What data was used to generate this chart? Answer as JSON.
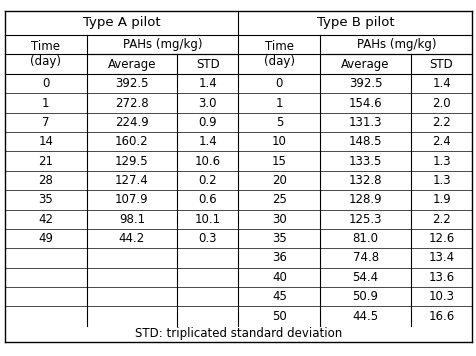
{
  "type_a": {
    "header1": "Type A pilot",
    "col1": "Time\n(day)",
    "col2": "PAHs (mg/kg)",
    "col2a": "Average",
    "col2b": "STD",
    "rows": [
      [
        "0",
        "392.5",
        "1.4"
      ],
      [
        "1",
        "272.8",
        "3.0"
      ],
      [
        "7",
        "224.9",
        "0.9"
      ],
      [
        "14",
        "160.2",
        "1.4"
      ],
      [
        "21",
        "129.5",
        "10.6"
      ],
      [
        "28",
        "127.4",
        "0.2"
      ],
      [
        "35",
        "107.9",
        "0.6"
      ],
      [
        "42",
        "98.1",
        "10.1"
      ],
      [
        "49",
        "44.2",
        "0.3"
      ],
      [
        "",
        "",
        ""
      ],
      [
        "",
        "",
        ""
      ],
      [
        "",
        "",
        ""
      ],
      [
        "",
        "",
        ""
      ]
    ]
  },
  "type_b": {
    "header1": "Type B pilot",
    "col1": "Time\n(day)",
    "col2": "PAHs (mg/kg)",
    "col2a": "Average",
    "col2b": "STD",
    "rows": [
      [
        "0",
        "392.5",
        "1.4"
      ],
      [
        "1",
        "154.6",
        "2.0"
      ],
      [
        "5",
        "131.3",
        "2.2"
      ],
      [
        "10",
        "148.5",
        "2.4"
      ],
      [
        "15",
        "133.5",
        "1.3"
      ],
      [
        "20",
        "132.8",
        "1.3"
      ],
      [
        "25",
        "128.9",
        "1.9"
      ],
      [
        "30",
        "125.3",
        "2.2"
      ],
      [
        "35",
        "81.0",
        "12.6"
      ],
      [
        "36",
        "74.8",
        "13.4"
      ],
      [
        "40",
        "54.4",
        "13.6"
      ],
      [
        "45",
        "50.9",
        "10.3"
      ],
      [
        "50",
        "44.5",
        "16.6"
      ]
    ]
  },
  "footer": "STD: triplicated standard deviation",
  "bg_color": "#ffffff",
  "text_color": "#000000",
  "line_color": "#000000"
}
